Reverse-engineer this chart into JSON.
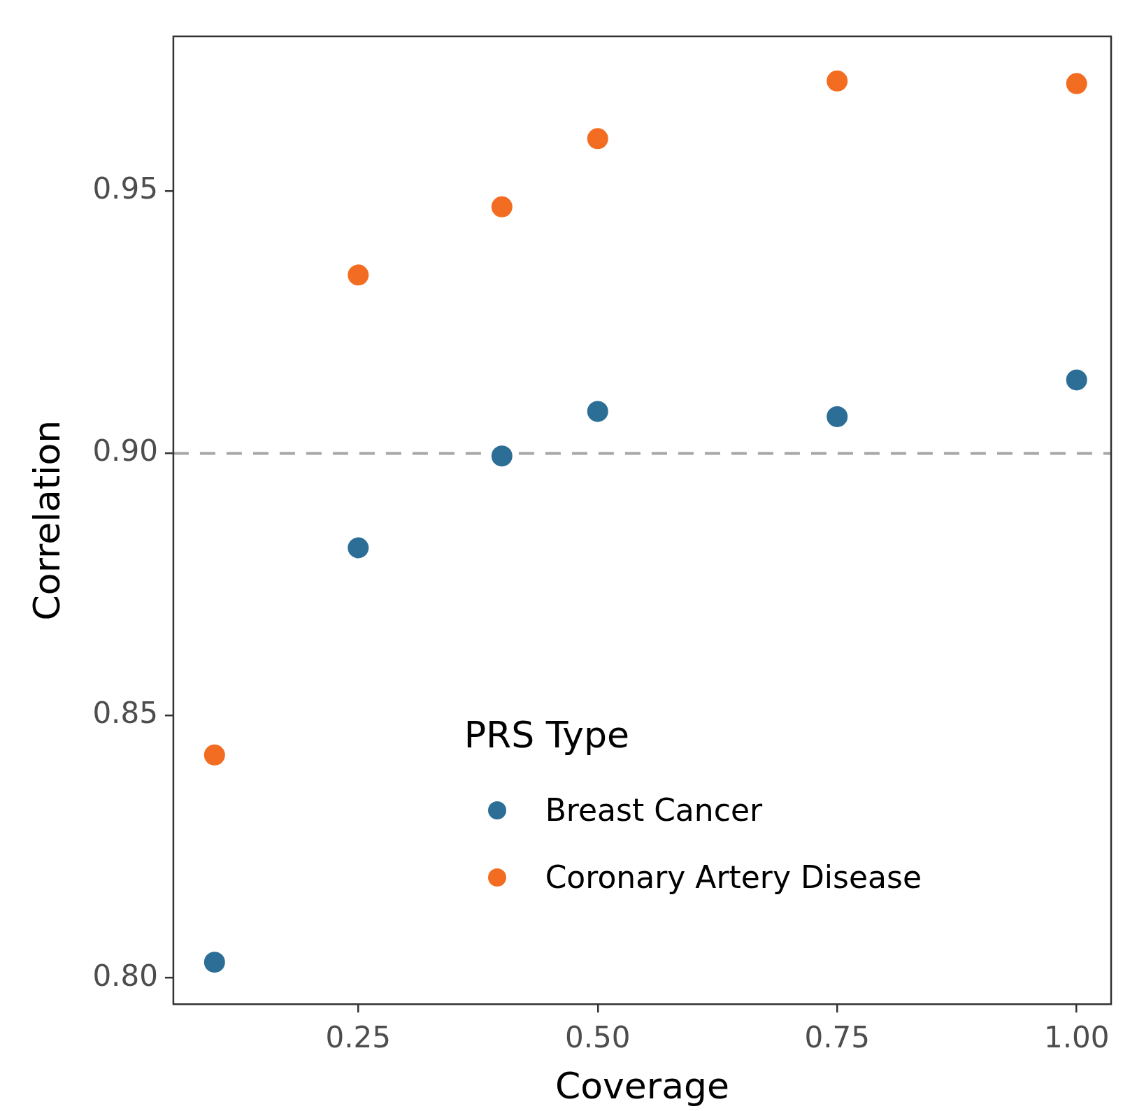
{
  "chart_data": {
    "type": "scatter",
    "xlabel": "Coverage",
    "ylabel": "Correlation",
    "legend_title": "PRS Type",
    "legend": "bottom",
    "marker": "circle",
    "grid": false,
    "x": [
      0.1,
      0.25,
      0.4,
      0.5,
      0.75,
      1.0
    ],
    "series": [
      {
        "name": "Breast Cancer",
        "color": "#2c6e96",
        "values": [
          0.803,
          0.882,
          0.8995,
          0.908,
          0.907,
          0.914
        ]
      },
      {
        "name": "Coronary Artery Disease",
        "color": "#f26c21",
        "values": [
          0.8425,
          0.934,
          0.947,
          0.96,
          0.971,
          0.9705
        ]
      }
    ],
    "xlim": [
      0.057,
      1.036
    ],
    "ylim": [
      0.795,
      0.9795
    ],
    "xticks": [
      0.25,
      {
        "value": 0.5,
        "label": "0.50"
      },
      0.75,
      {
        "value": 1.0,
        "label": "1.00"
      }
    ],
    "yticks": [
      {
        "value": 0.8,
        "label": "0.80"
      },
      0.85,
      {
        "value": 0.9,
        "label": "0.90"
      },
      0.95
    ],
    "ref_lines": [
      {
        "axis": "y",
        "value": 0.9,
        "color": "#a6a6a6",
        "line_style": "dashed"
      }
    ]
  }
}
